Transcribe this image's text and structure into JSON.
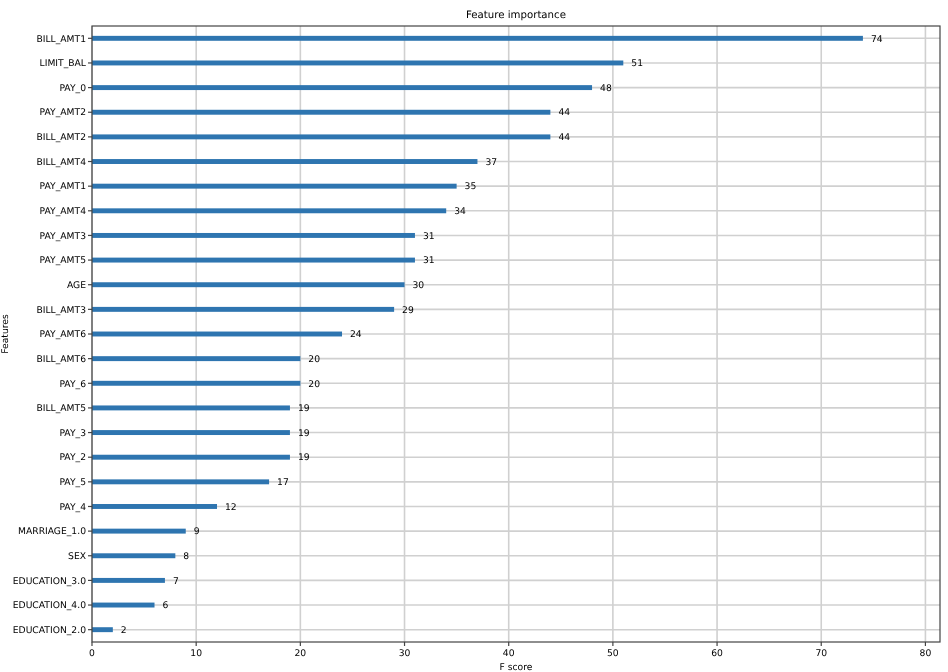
{
  "chart_data": {
    "type": "bar",
    "orientation": "horizontal",
    "title": "Feature importance",
    "xlabel": "F score",
    "ylabel": "Features",
    "categories": [
      "BILL_AMT1",
      "LIMIT_BAL",
      "PAY_0",
      "PAY_AMT2",
      "BILL_AMT2",
      "BILL_AMT4",
      "PAY_AMT1",
      "PAY_AMT4",
      "PAY_AMT3",
      "PAY_AMT5",
      "AGE",
      "BILL_AMT3",
      "PAY_AMT6",
      "BILL_AMT6",
      "PAY_6",
      "BILL_AMT5",
      "PAY_3",
      "PAY_2",
      "PAY_5",
      "PAY_4",
      "MARRIAGE_1.0",
      "SEX",
      "EDUCATION_3.0",
      "EDUCATION_4.0",
      "EDUCATION_2.0"
    ],
    "values": [
      74,
      51,
      48,
      44,
      44,
      37,
      35,
      34,
      31,
      31,
      30,
      29,
      24,
      20,
      20,
      19,
      19,
      19,
      17,
      12,
      9,
      8,
      7,
      6,
      2
    ],
    "color": "#2e75b0",
    "xlim": [
      0,
      81.4
    ],
    "xticks": [
      0,
      10,
      20,
      30,
      40,
      50,
      60,
      70,
      80
    ],
    "grid": true,
    "data_labels": true
  }
}
